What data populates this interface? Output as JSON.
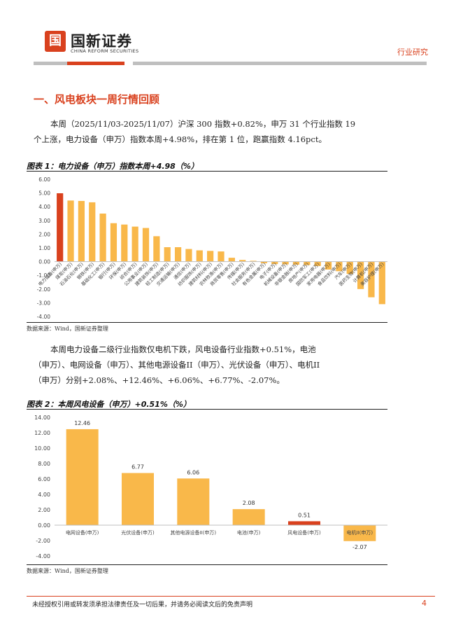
{
  "header": {
    "logo_mark": "国新",
    "logo_cn": "国新证券",
    "logo_en": "CHINA REFORM SECURITIES",
    "category": "行业研究",
    "colors": {
      "accent": "#d9411e",
      "bar": "#f9b84a",
      "grey": "#bfbfbf"
    }
  },
  "section": {
    "title": "一、风电板块一周行情回顾"
  },
  "para1": {
    "line1": "本周（2025/11/03-2025/11/07）沪深 300 指数+0.82%，申万 31 个行业指数 19",
    "line2": "个上涨，电力设备（申万）指数本周+4.98%，排在第 1 位，跑赢指数 4.16pct。"
  },
  "para2": {
    "line1": "本周电力设备二级行业指数仅电机下跌，风电设备行业指数+0.51%，电池",
    "line2": "（申万）、电网设备（申万）、其他电源设备II（申万）、光伏设备（申万）、电机II",
    "line3": "（申万）分别+2.08%、+12.46%、+6.06%、+6.77%、-2.07%。"
  },
  "figures": {
    "fig1_title": "图表 1：电力设备（申万）指数本周+4.98（%）",
    "fig2_title": "图表 2：本周风电设备（申万）+0.51%（%）",
    "source1": "数据来源：Wind，国新证券整理",
    "source2": "数据来源：Wind，国新证券整理"
  },
  "footer": {
    "disclaimer": "未经授权引用或转发须承担法律责任及一切后果，并请务必阅读文后的免责声明",
    "page": "4"
  },
  "chart_data": [
    {
      "type": "bar",
      "title": "图表 1：电力设备（申万）指数本周+4.98（%）",
      "categories": [
        "电力设备(申万)",
        "煤炭(申万)",
        "石油石化(申万)",
        "钢铁(申万)",
        "基础化工(申万)",
        "银行(申万)",
        "环保(申万)",
        "综合(申万)",
        "公用事业(申万)",
        "建筑装饰(申万)",
        "轻工制造(申万)",
        "交通运输(申万)",
        "通信(申万)",
        "纺织服饰(申万)",
        "建筑材料(申万)",
        "农林牧渔(申万)",
        "商贸零售(申万)",
        "传媒(申万)",
        "社会服务(申万)",
        "有色金属(申万)",
        "电子(申万)",
        "机械设备(申万)",
        "非银金融(申万)",
        "房地产(申万)",
        "国防军工(申万)",
        "家用电器(申万)",
        "食品饮料(申万)",
        "汽车(申万)",
        "医药生物(申万)",
        "计算机(申万)",
        "美容护理(申万)"
      ],
      "values": [
        4.98,
        4.45,
        4.42,
        4.32,
        3.5,
        2.8,
        2.7,
        2.55,
        2.45,
        1.85,
        1.05,
        1.05,
        0.92,
        0.82,
        0.78,
        0.74,
        0.28,
        0.12,
        0.06,
        -0.12,
        -0.18,
        -0.2,
        -0.22,
        -0.25,
        -0.32,
        -0.58,
        -0.7,
        -0.9,
        -2.0,
        -2.6,
        -3.1
      ],
      "highlight_index": 0,
      "yticks": [
        "6.00",
        "5.00",
        "4.00",
        "3.00",
        "2.00",
        "1.00",
        "0.00",
        "-1.00",
        "-2.00",
        "-3.00",
        "-4.00"
      ],
      "ylim": [
        -4,
        6
      ],
      "grid": false,
      "colors": {
        "highlight": "#d9411e",
        "default": "#f9b84a"
      }
    },
    {
      "type": "bar",
      "title": "图表 2：本周风电设备（申万）+0.51%（%）",
      "categories": [
        "电网设备(申万)",
        "光伏设备(申万)",
        "其他电源设备II(申万)",
        "电池(申万)",
        "风电设备(申万)",
        "电机II(申万)"
      ],
      "values": [
        12.46,
        6.77,
        6.06,
        2.08,
        0.51,
        -2.07
      ],
      "labels": [
        "12.46",
        "6.77",
        "6.06",
        "2.08",
        "0.51",
        "-2.07"
      ],
      "highlight_index": 4,
      "yticks": [
        "14.00",
        "12.00",
        "10.00",
        "8.00",
        "6.00",
        "4.00",
        "2.00",
        "0.00",
        "-2.00",
        "-4.00"
      ],
      "ylim": [
        -4,
        14
      ],
      "grid": false,
      "colors": {
        "highlight": "#d9411e",
        "default": "#f9b84a"
      }
    }
  ]
}
